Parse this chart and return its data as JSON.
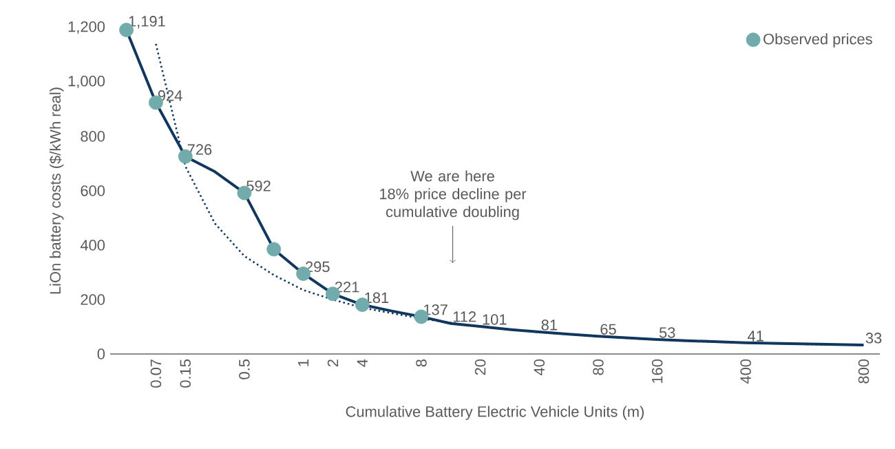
{
  "chart_data": {
    "type": "line",
    "xlabel": "Cumulative Battery Electric Vehicle Units (m)",
    "ylabel": "LiOn battery costs ($/kWh real)",
    "categories": [
      null,
      "0.07",
      "0.15",
      null,
      "0.5",
      null,
      "1",
      "2",
      "4",
      null,
      "8",
      null,
      "20",
      null,
      "40",
      null,
      "80",
      null,
      "160",
      null,
      null,
      "400",
      null,
      null,
      null,
      "800"
    ],
    "series": [
      {
        "marker": "none",
        "line_style": "dotted",
        "color": "#12375e",
        "values": [
          null,
          1140,
          690,
          480,
          360,
          290,
          235,
          200,
          170,
          150,
          130,
          115,
          100,
          90,
          80,
          72,
          65,
          58,
          53,
          48,
          44,
          41,
          38,
          36,
          34,
          33
        ]
      },
      {
        "marker": "none",
        "line_style": "solid",
        "color": "#12375e",
        "values": [
          1191,
          924,
          726,
          670,
          592,
          385,
          295,
          221,
          181,
          158,
          137,
          112,
          101,
          90,
          81,
          73,
          65,
          59,
          53,
          49,
          45,
          41,
          39,
          37,
          35,
          33
        ],
        "value_labels": [
          "1,191",
          "924",
          "726",
          null,
          "592",
          null,
          "295",
          "221",
          "181",
          null,
          "137",
          "112",
          "101",
          null,
          "81",
          null,
          "65",
          null,
          "53",
          null,
          null,
          "41",
          null,
          null,
          null,
          "33"
        ]
      },
      {
        "type": "scatter",
        "name": "Observed prices",
        "color": "#72abab",
        "marker": "circle",
        "values": [
          1191,
          924,
          726,
          null,
          592,
          385,
          295,
          221,
          181,
          null,
          137,
          null,
          null,
          null,
          null,
          null,
          null,
          null,
          null,
          null,
          null,
          null,
          null,
          null,
          null,
          null
        ]
      }
    ],
    "ylim": [
      0,
      1200
    ],
    "yticks": [
      0,
      200,
      400,
      600,
      800,
      {
        "value": 1000,
        "label": "1,000"
      },
      {
        "value": 1200,
        "label": "1,200"
      }
    ],
    "annotations": [
      "We are here\n18% price decline per\ncumulative doubling"
    ],
    "legend": "top right",
    "grid": false
  }
}
